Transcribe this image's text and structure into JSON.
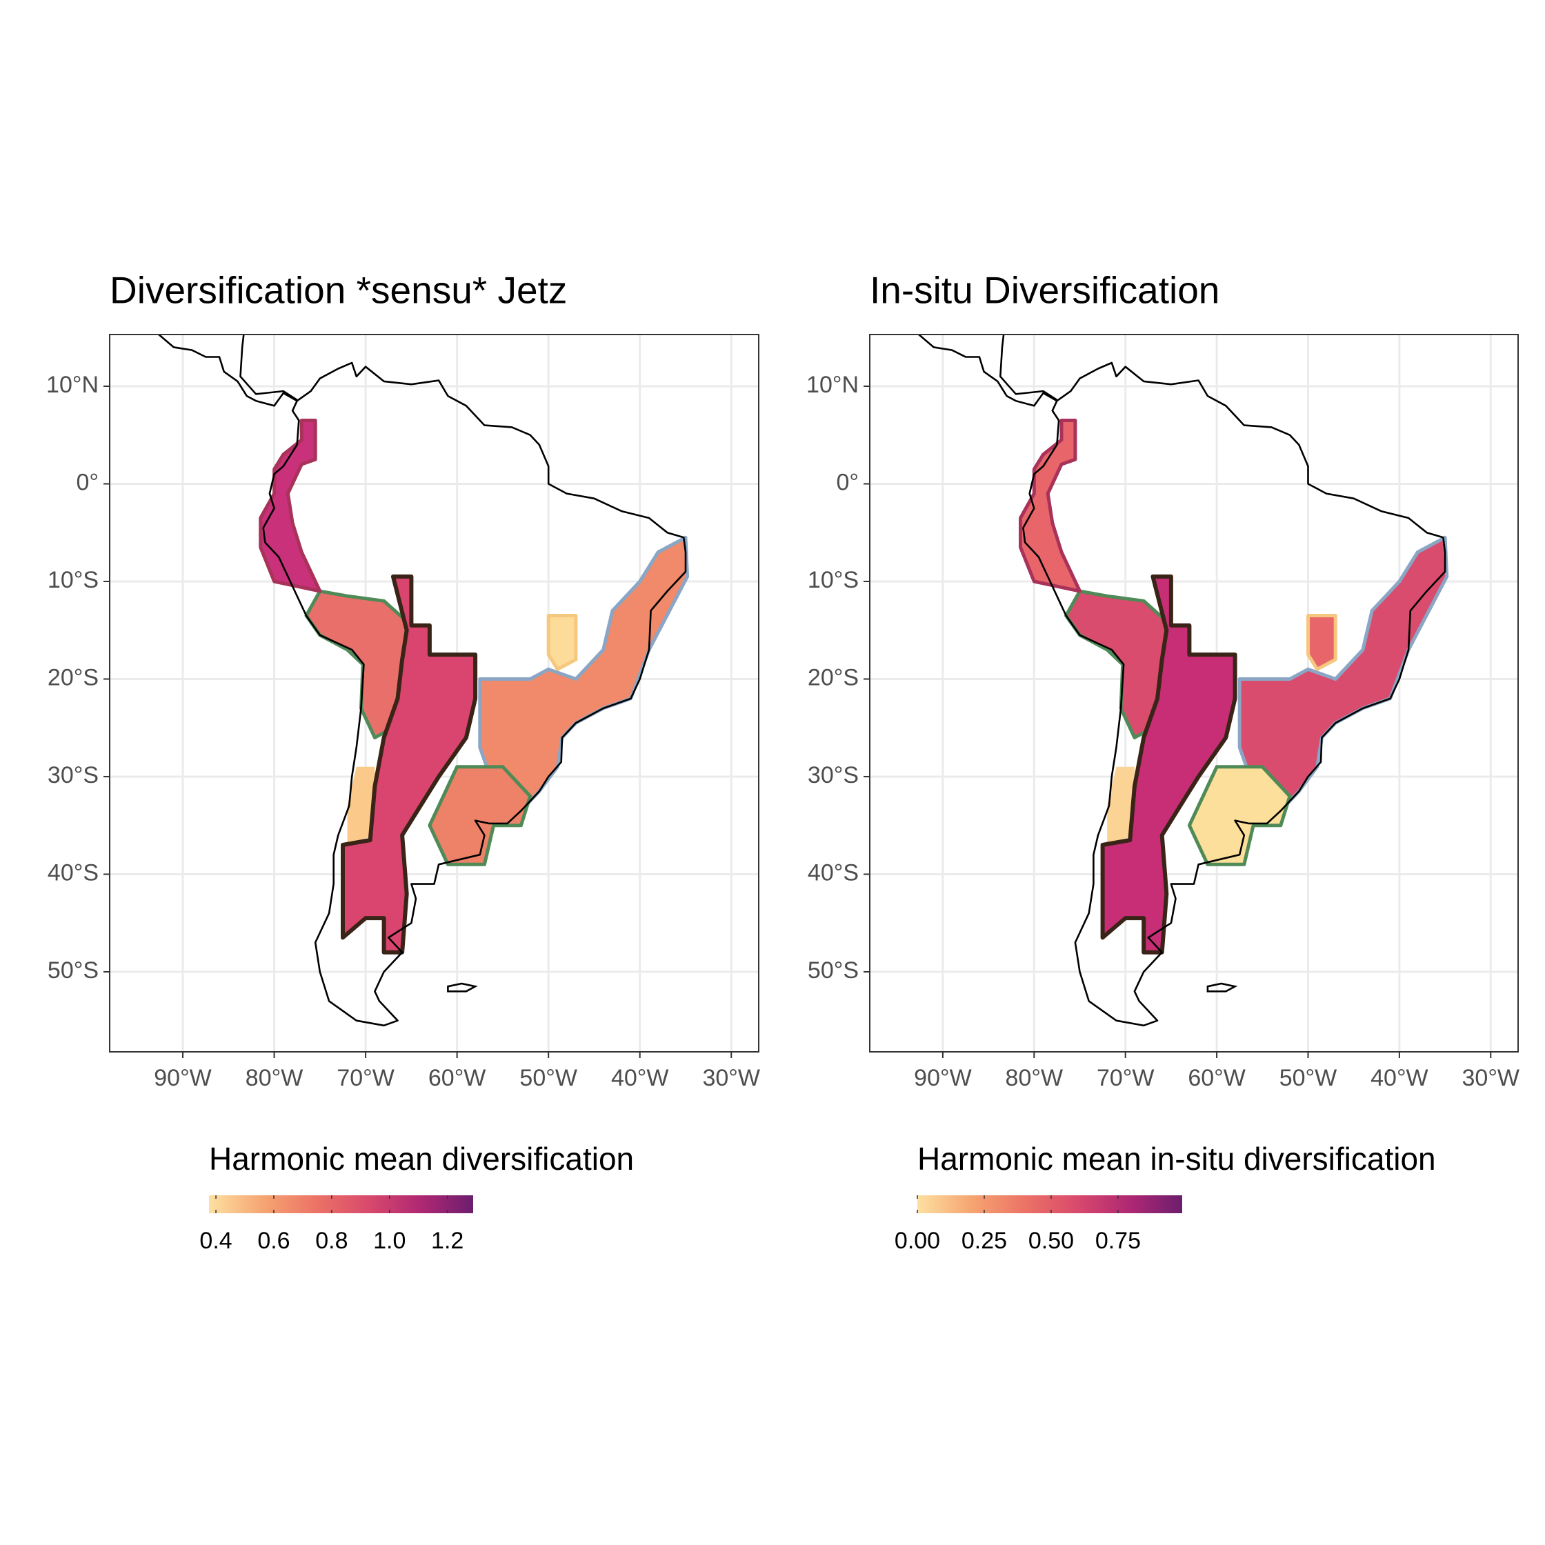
{
  "chart_data": [
    {
      "type": "map",
      "title": "Diversification *sensu* Jetz",
      "xlim": [
        -98,
        -27
      ],
      "ylim": [
        -58.2,
        15.3
      ],
      "xticks": [
        {
          "value": -90,
          "label": "90°W"
        },
        {
          "value": -80,
          "label": "80°W"
        },
        {
          "value": -70,
          "label": "70°W"
        },
        {
          "value": -60,
          "label": "60°W"
        },
        {
          "value": -50,
          "label": "50°W"
        },
        {
          "value": -40,
          "label": "40°W"
        },
        {
          "value": -30,
          "label": "30°W"
        }
      ],
      "yticks": [
        {
          "value": 10,
          "label": "10°N"
        },
        {
          "value": 0,
          "label": "0°"
        },
        {
          "value": -10,
          "label": "10°S"
        },
        {
          "value": -20,
          "label": "20°S"
        },
        {
          "value": -30,
          "label": "30°S"
        },
        {
          "value": -40,
          "label": "40°S"
        },
        {
          "value": -50,
          "label": "50°S"
        }
      ],
      "grid": true,
      "legend": {
        "title": "Harmonic mean diversification",
        "lim": [
          0.376,
          1.289
        ],
        "ticks": [
          0.4,
          0.6,
          0.8,
          {
            "value": 1,
            "label": "1.0"
          },
          1.2
        ],
        "colors": [
          "#fde0a1",
          "#f6a672",
          "#ec7466",
          "#d94a6c",
          "#b02873",
          "#6c1e6e"
        ]
      }
    },
    {
      "type": "map",
      "title": "In-situ Diversification",
      "xlim": [
        -98,
        -27
      ],
      "ylim": [
        -58.2,
        15.3
      ],
      "xticks": [
        {
          "value": -90,
          "label": "90°W"
        },
        {
          "value": -80,
          "label": "80°W"
        },
        {
          "value": -70,
          "label": "70°W"
        },
        {
          "value": -60,
          "label": "60°W"
        },
        {
          "value": -50,
          "label": "50°W"
        },
        {
          "value": -40,
          "label": "40°W"
        },
        {
          "value": -30,
          "label": "30°W"
        }
      ],
      "yticks": [
        {
          "value": 10,
          "label": "10°N"
        },
        {
          "value": 0,
          "label": "0°"
        },
        {
          "value": -10,
          "label": "10°S"
        },
        {
          "value": -20,
          "label": "20°S"
        },
        {
          "value": -30,
          "label": "30°S"
        },
        {
          "value": -40,
          "label": "40°S"
        },
        {
          "value": -50,
          "label": "50°S"
        }
      ],
      "grid": true,
      "legend": {
        "title": "Harmonic mean in-situ diversification",
        "lim": [
          0,
          0.99
        ],
        "ticks": [
          {
            "value": 0,
            "label": "0.00"
          },
          {
            "value": 0.25,
            "label": "0.25"
          },
          {
            "value": 0.5,
            "label": "0.50"
          },
          {
            "value": 0.75,
            "label": "0.75"
          }
        ],
        "colors": [
          "#fde0a1",
          "#f6a672",
          "#ec7466",
          "#d94a6c",
          "#b02873",
          "#6c1e6e"
        ]
      }
    }
  ]
}
